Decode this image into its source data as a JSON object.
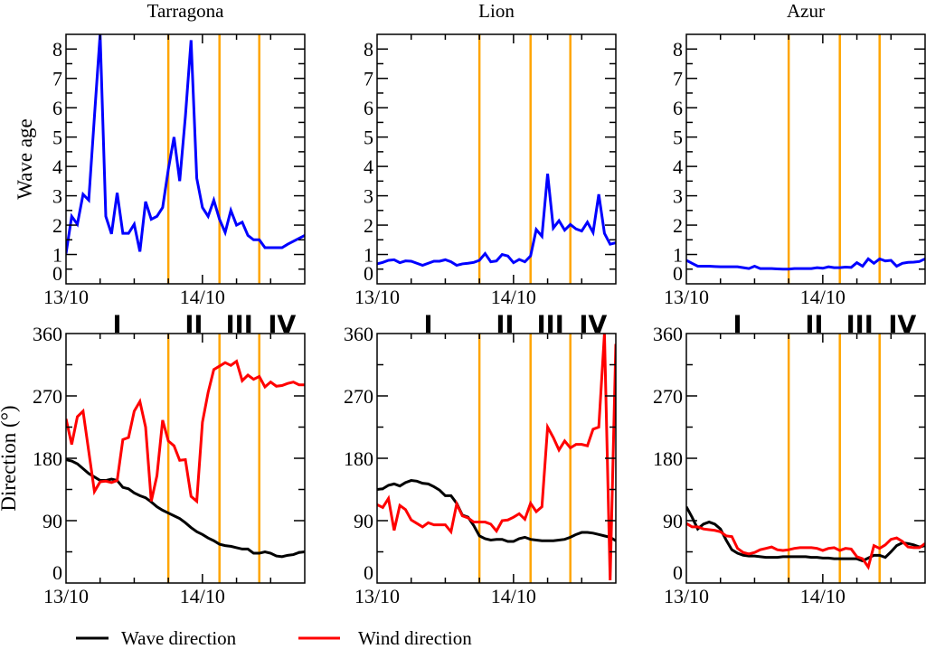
{
  "chart_data": [
    {
      "type": "line",
      "title": "Tarragona",
      "ylabel": "Wave  age",
      "ylim": [
        0,
        8.5
      ],
      "yticks": [
        "0",
        "1",
        "2",
        "3",
        "4",
        "5",
        "6",
        "7",
        "8"
      ],
      "xlim": [
        "13/10 00:00",
        "14/10 18:00"
      ],
      "xticks": [
        "13/10",
        "14/10"
      ],
      "x_start": "13/10 00:00",
      "x_step": "1 h",
      "vlines": [
        "13/10 18:00",
        "14/10 03:00",
        "14/10 10:00"
      ],
      "series": [
        {
          "color": "#0000ff",
          "values": [
            1.03,
            2.3,
            2.03,
            3.05,
            2.85,
            5.7,
            8.5,
            2.3,
            1.7,
            3.1,
            1.72,
            1.72,
            2.03,
            1.1,
            2.8,
            2.2,
            2.3,
            2.6,
            3.9,
            5.0,
            3.5,
            5.7,
            8.3,
            3.6,
            2.6,
            2.3,
            2.85,
            2.2,
            1.75,
            2.5,
            2.0,
            2.1,
            1.65,
            1.5,
            1.5,
            1.23,
            1.23,
            1.23,
            1.23,
            1.35,
            1.45,
            1.55,
            1.65
          ]
        }
      ]
    },
    {
      "type": "line",
      "title": "Lion",
      "ylim": [
        0,
        8.5
      ],
      "yticks": [
        "0",
        "1",
        "2",
        "3",
        "4",
        "5",
        "6",
        "7",
        "8"
      ],
      "xlim": [
        "13/10 00:00",
        "14/10 18:00"
      ],
      "xticks": [
        "13/10",
        "14/10"
      ],
      "x_start": "13/10 00:00",
      "x_step": "1 h",
      "vlines": [
        "13/10 18:00",
        "14/10 03:00",
        "14/10 10:00"
      ],
      "series": [
        {
          "color": "#0000ff",
          "values": [
            0.68,
            0.73,
            0.8,
            0.82,
            0.72,
            0.78,
            0.77,
            0.7,
            0.63,
            0.7,
            0.77,
            0.77,
            0.82,
            0.75,
            0.63,
            0.68,
            0.7,
            0.73,
            0.8,
            1.03,
            0.75,
            0.78,
            1.0,
            0.95,
            0.72,
            0.83,
            0.75,
            0.95,
            1.85,
            1.62,
            3.75,
            1.9,
            2.15,
            1.83,
            2.02,
            1.87,
            1.8,
            2.1,
            1.75,
            3.05,
            1.72,
            1.35,
            1.4
          ]
        }
      ]
    },
    {
      "type": "line",
      "title": "Azur",
      "ylim": [
        0,
        8.5
      ],
      "yticks": [
        "0",
        "1",
        "2",
        "3",
        "4",
        "5",
        "6",
        "7",
        "8"
      ],
      "xlim": [
        "13/10 00:00",
        "14/10 18:00"
      ],
      "xticks": [
        "13/10",
        "14/10"
      ],
      "x_start": "13/10 00:00",
      "x_step": "1 h",
      "vlines": [
        "13/10 18:00",
        "14/10 03:00",
        "14/10 10:00"
      ],
      "series": [
        {
          "color": "#0000ff",
          "values": [
            0.8,
            0.7,
            0.6,
            0.6,
            0.6,
            0.59,
            0.58,
            0.58,
            0.58,
            0.58,
            0.55,
            0.52,
            0.6,
            0.52,
            0.52,
            0.52,
            0.51,
            0.5,
            0.5,
            0.52,
            0.52,
            0.52,
            0.52,
            0.55,
            0.53,
            0.58,
            0.55,
            0.55,
            0.57,
            0.56,
            0.72,
            0.6,
            0.85,
            0.7,
            0.85,
            0.78,
            0.8,
            0.6,
            0.7,
            0.73,
            0.74,
            0.76,
            0.85
          ]
        }
      ]
    },
    {
      "type": "line",
      "ylabel": "Direction (°)",
      "ylim": [
        0,
        360
      ],
      "yticks": [
        "0",
        "90",
        "180",
        "270",
        "360"
      ],
      "xlim": [
        "13/10 00:00",
        "14/10 18:00"
      ],
      "xticks": [
        "13/10",
        "14/10"
      ],
      "x_start": "13/10 00:00",
      "x_step": "1 h",
      "vlines": [
        "13/10 18:00",
        "14/10 03:00",
        "14/10 10:00"
      ],
      "periods": [
        "I",
        "II",
        "III",
        "IV"
      ],
      "series": [
        {
          "name": "Wave direction",
          "color": "#000000",
          "values": [
            178,
            176,
            172,
            165,
            158,
            153,
            148,
            148,
            150,
            148,
            138,
            136,
            130,
            126,
            123,
            117,
            110,
            105,
            101,
            97,
            93,
            87,
            80,
            74,
            70,
            65,
            61,
            56,
            54,
            53,
            51,
            49,
            49,
            43,
            43,
            45,
            43,
            39,
            38,
            40,
            41,
            44,
            45
          ]
        },
        {
          "name": "Wind direction",
          "color": "#ff0000",
          "values": [
            237,
            200,
            240,
            248,
            190,
            132,
            146,
            147,
            145,
            148,
            207,
            210,
            248,
            262,
            225,
            118,
            155,
            235,
            205,
            198,
            177,
            178,
            125,
            118,
            232,
            275,
            308,
            313,
            318,
            314,
            320,
            292,
            300,
            294,
            298,
            283,
            290,
            284,
            285,
            288,
            290,
            286,
            286
          ]
        }
      ]
    },
    {
      "type": "line",
      "ylim": [
        0,
        360
      ],
      "yticks": [
        "0",
        "90",
        "180",
        "270",
        "360"
      ],
      "xlim": [
        "13/10 00:00",
        "14/10 18:00"
      ],
      "xticks": [
        "13/10",
        "14/10"
      ],
      "x_start": "13/10 00:00",
      "x_step": "1 h",
      "vlines": [
        "13/10 18:00",
        "14/10 03:00",
        "14/10 10:00"
      ],
      "periods": [
        "I",
        "II",
        "III",
        "IV"
      ],
      "series": [
        {
          "name": "Wave direction",
          "color": "#000000",
          "values": [
            135,
            136,
            141,
            143,
            140,
            145,
            148,
            147,
            144,
            143,
            139,
            134,
            126,
            126,
            115,
            98,
            95,
            83,
            68,
            64,
            62,
            63,
            63,
            60,
            60,
            64,
            66,
            63,
            62,
            61,
            61,
            61,
            62,
            63,
            66,
            70,
            73,
            73,
            72,
            70,
            68,
            66,
            61
          ]
        },
        {
          "name": "Wind direction",
          "color": "#ff0000",
          "values": [
            113,
            109,
            122,
            76,
            112,
            106,
            91,
            86,
            81,
            87,
            84,
            84,
            84,
            74,
            114,
            97,
            94,
            88,
            88,
            88,
            85,
            75,
            90,
            91,
            95,
            100,
            92,
            115,
            103,
            110,
            225,
            210,
            192,
            205,
            195,
            200,
            200,
            198,
            222,
            225,
            360,
            4,
            345
          ]
        }
      ]
    },
    {
      "type": "line",
      "ylim": [
        0,
        360
      ],
      "yticks": [
        "0",
        "90",
        "180",
        "270",
        "360"
      ],
      "xlim": [
        "13/10 00:00",
        "14/10 18:00"
      ],
      "xticks": [
        "13/10",
        "14/10"
      ],
      "x_start": "13/10 00:00",
      "x_step": "1 h",
      "vlines": [
        "13/10 18:00",
        "14/10 03:00",
        "14/10 10:00"
      ],
      "periods": [
        "I",
        "II",
        "III",
        "IV"
      ],
      "series": [
        {
          "name": "Wave direction",
          "color": "#000000",
          "values": [
            110,
            95,
            78,
            85,
            88,
            85,
            78,
            62,
            48,
            43,
            40,
            39,
            39,
            38,
            37,
            37,
            37,
            38,
            38,
            38,
            38,
            38,
            37,
            37,
            36,
            36,
            35,
            35,
            35,
            35,
            35,
            32,
            36,
            40,
            40,
            37,
            45,
            54,
            58,
            57,
            55,
            52,
            54
          ]
        },
        {
          "name": "Wind direction",
          "color": "#ff0000",
          "values": [
            86,
            81,
            81,
            78,
            77,
            76,
            74,
            68,
            67,
            50,
            44,
            42,
            44,
            48,
            50,
            52,
            48,
            47,
            48,
            50,
            51,
            51,
            51,
            50,
            47,
            50,
            51,
            47,
            50,
            49,
            38,
            35,
            23,
            54,
            50,
            55,
            63,
            65,
            60,
            52,
            51,
            51,
            57
          ]
        }
      ]
    }
  ],
  "legend": {
    "placement": "bottom",
    "items": [
      {
        "label": "Wave direction",
        "color": "#000000"
      },
      {
        "label": "Wind direction",
        "color": "#ff0000"
      }
    ]
  },
  "colors": {
    "vline": "#ffa500"
  }
}
